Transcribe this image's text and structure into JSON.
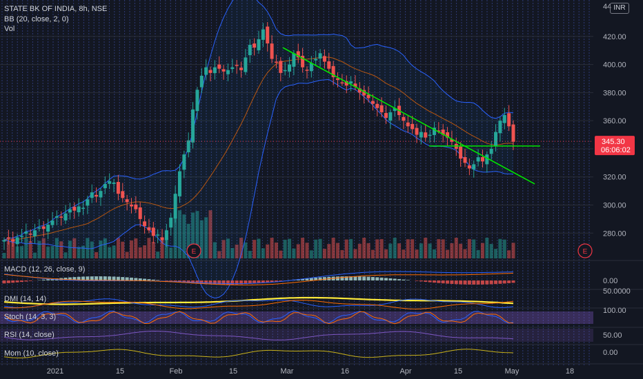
{
  "header": {
    "symbol_line": "STATE BK OF INDIA, 8h, NSE",
    "bb_line": "BB (20, close, 2, 0)",
    "vol_line": "Vol",
    "currency": "INR",
    "top_price_label": "44"
  },
  "indicators": {
    "macd": "MACD (12, 26, close, 9)",
    "dmi": "DMI (14, 14)",
    "stoch": "Stoch (14, 3, 3)",
    "rsi": "RSI (14, close)",
    "mom": "Mom (10, close)"
  },
  "price_badge": {
    "price": "345.30",
    "countdown": "06:06:02"
  },
  "earnings_markers": [
    "E",
    "E"
  ],
  "colors": {
    "up": "#26a69a",
    "down": "#ef5350",
    "bb": "#2962ff",
    "trend": "#00e600",
    "stoch_band": "#7e57c2",
    "dmi_adx": "#ffeb3b",
    "badge": "#f23645"
  },
  "chart_data": {
    "type": "candlestick",
    "title": "STATE BK OF INDIA, 8h, NSE",
    "ylim": [
      262,
      441
    ],
    "y_ticks": [
      "420.00",
      "400.00",
      "380.00",
      "360.00",
      "340.00",
      "320.00",
      "300.00",
      "280.00"
    ],
    "x_ticks": [
      "2021",
      "15",
      "Feb",
      "15",
      "Mar",
      "16",
      "Apr",
      "15",
      "May",
      "18"
    ],
    "close_series": [
      275,
      276,
      274,
      277,
      278,
      281,
      279,
      282,
      284,
      283,
      286,
      289,
      292,
      291,
      294,
      297,
      296,
      299,
      298,
      304,
      309,
      306,
      310,
      315,
      317,
      316,
      308,
      305,
      302,
      299,
      297,
      290,
      285,
      282,
      278,
      279,
      275,
      282,
      291,
      308,
      324,
      336,
      346,
      368,
      382,
      392,
      398,
      394,
      398,
      397,
      395,
      396,
      398,
      399,
      396,
      405,
      414,
      412,
      418,
      425,
      415,
      404,
      402,
      394,
      396,
      400,
      408,
      405,
      398,
      396,
      401,
      404,
      408,
      402,
      397,
      391,
      389,
      387,
      385,
      388,
      384,
      380,
      378,
      376,
      372,
      369,
      366,
      362,
      366,
      369,
      364,
      360,
      356,
      354,
      350,
      352,
      348,
      350,
      355,
      353,
      350,
      348,
      345,
      340,
      333,
      330,
      326,
      329,
      334,
      331,
      336,
      340,
      352,
      360,
      364,
      356,
      345
    ]
  },
  "indicator_levels": {
    "macd_axis": "0.00",
    "dmi_axis": "50.0000",
    "stoch_axis": "100.00",
    "rsi_axis": "50.00",
    "mom_axis": "0.00"
  }
}
